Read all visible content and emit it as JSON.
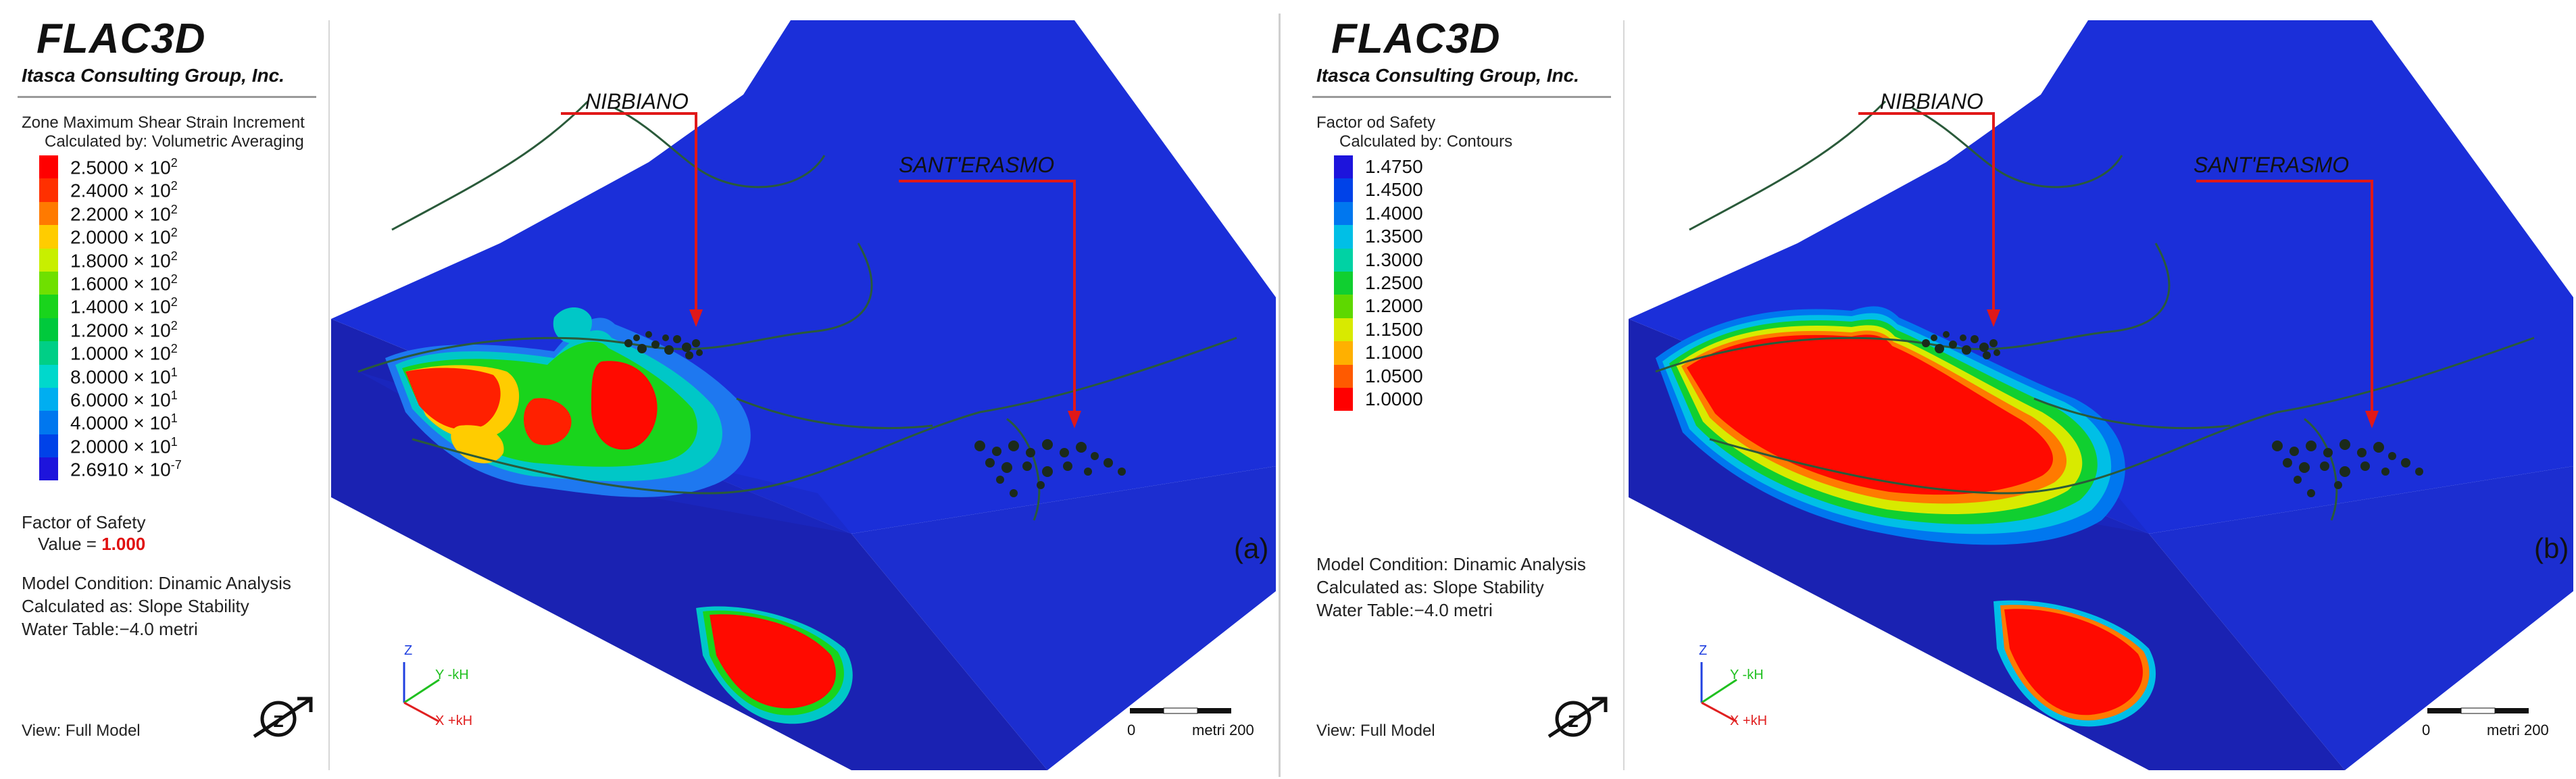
{
  "panels": [
    {
      "id": "a",
      "software": "FLAC3D",
      "company": "Itasca Consulting Group, Inc.",
      "legend_title": "Zone Maximum Shear Strain Increment",
      "legend_subtitle": "Calculated by: Volumetric Averaging",
      "legend_items": [
        {
          "mantissa": "2.5000 × 10",
          "exp": "2",
          "color": "#ff0000"
        },
        {
          "mantissa": "2.4000 × 10",
          "exp": "2",
          "color": "#ff3000"
        },
        {
          "mantissa": "2.2000 × 10",
          "exp": "2",
          "color": "#ff7a00"
        },
        {
          "mantissa": "2.0000 × 10",
          "exp": "2",
          "color": "#ffcc00"
        },
        {
          "mantissa": "1.8000 × 10",
          "exp": "2",
          "color": "#c8ef00"
        },
        {
          "mantissa": "1.6000 × 10",
          "exp": "2",
          "color": "#6fe000"
        },
        {
          "mantissa": "1.4000 × 10",
          "exp": "2",
          "color": "#19d41c"
        },
        {
          "mantissa": "1.2000 × 10",
          "exp": "2",
          "color": "#00c93c"
        },
        {
          "mantissa": "1.0000 × 10",
          "exp": "2",
          "color": "#00cf86"
        },
        {
          "mantissa": "8.0000 × 10",
          "exp": "1",
          "color": "#00d8cc"
        },
        {
          "mantissa": "6.0000 × 10",
          "exp": "1",
          "color": "#00aef0"
        },
        {
          "mantissa": "4.0000 × 10",
          "exp": "1",
          "color": "#0077ef"
        },
        {
          "mantissa": "2.0000 × 10",
          "exp": "1",
          "color": "#0042e8"
        },
        {
          "mantissa": "2.6910 × 10",
          "exp": "-7",
          "color": "#1d14dc"
        }
      ],
      "fos_title": "Factor of Safety",
      "fos_label": "Value = ",
      "fos_value": "1.000",
      "model_condition": "Model Condition: Dinamic Analysis",
      "calculated_as": "Calculated as: Slope Stability",
      "water_table": "Water Table:−4.0 metri",
      "view": "View: Full Model",
      "letter": "(a)",
      "place1": "NIBBIANO",
      "place2": "SANT'ERASMO",
      "axes": {
        "z": "Z",
        "y": "Y -kH",
        "x": "X +kH"
      },
      "scale_zero": "0",
      "scale_end": "metri 200"
    },
    {
      "id": "b",
      "software": "FLAC3D",
      "company": "Itasca Consulting Group, Inc.",
      "legend_title": "Factor od Safety",
      "legend_subtitle": "Calculated by: Contours",
      "legend_items": [
        {
          "mantissa": "1.4750",
          "exp": "",
          "color": "#1d14dc"
        },
        {
          "mantissa": "1.4500",
          "exp": "",
          "color": "#0042e8"
        },
        {
          "mantissa": "1.4000",
          "exp": "",
          "color": "#0077ef"
        },
        {
          "mantissa": "1.3500",
          "exp": "",
          "color": "#00bfe6"
        },
        {
          "mantissa": "1.3000",
          "exp": "",
          "color": "#00d2a4"
        },
        {
          "mantissa": "1.2500",
          "exp": "",
          "color": "#10cf30"
        },
        {
          "mantissa": "1.2000",
          "exp": "",
          "color": "#5ed800"
        },
        {
          "mantissa": "1.1500",
          "exp": "",
          "color": "#d8ea00"
        },
        {
          "mantissa": "1.1000",
          "exp": "",
          "color": "#ffb000"
        },
        {
          "mantissa": "1.0500",
          "exp": "",
          "color": "#ff5a00"
        },
        {
          "mantissa": "1.0000",
          "exp": "",
          "color": "#ff0000"
        }
      ],
      "model_condition": "Model Condition: Dinamic Analysis",
      "calculated_as": "Calculated as: Slope Stability",
      "water_table": "Water Table:−4.0 metri",
      "view": "View: Full Model",
      "letter": "(b)",
      "place1": "NIBBIANO",
      "place2": "SANT'ERASMO",
      "axes": {
        "z": "Z",
        "y": "Y -kH",
        "x": "X +kH"
      },
      "scale_zero": "0",
      "scale_end": "metri 200"
    }
  ],
  "colors": {
    "surface_blue": "#1b2fd9",
    "side_blue": "#1724b8",
    "front_blue": "#1e3ae8",
    "arrow_red": "#e01818",
    "building_dark": "#1b2a1b",
    "road_dark": "#2a5a3a"
  }
}
